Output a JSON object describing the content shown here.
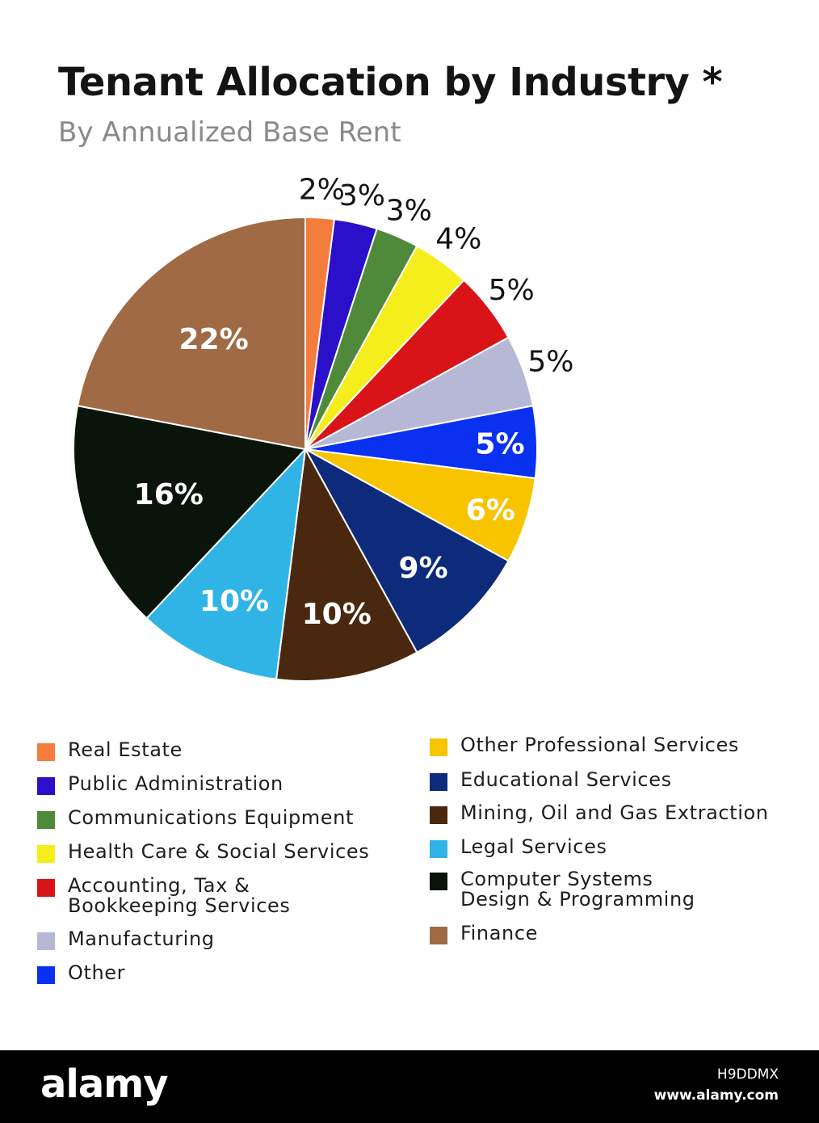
{
  "chart_data": {
    "type": "pie",
    "title": "Tenant Allocation by Industry *",
    "subtitle": "By Annualized Base Rent",
    "slices": [
      {
        "label": "Real Estate",
        "value": 2,
        "display": "2%",
        "color": "#F47C3C"
      },
      {
        "label": "Public Administration",
        "value": 3,
        "display": "3%",
        "color": "#2A10C8"
      },
      {
        "label": "Communications Equipment",
        "value": 3,
        "display": "3%",
        "color": "#4E8A3A"
      },
      {
        "label": "Health Care & Social Services",
        "value": 4,
        "display": "4%",
        "color": "#F5EE1C"
      },
      {
        "label": "Accounting, Tax &\nBookkeeping Services",
        "value": 5,
        "display": "5%",
        "color": "#D81418"
      },
      {
        "label": "Manufacturing",
        "value": 5,
        "display": "5%",
        "color": "#B7B8D6"
      },
      {
        "label": "Other",
        "value": 5,
        "display": "5%",
        "color": "#0A30F0"
      },
      {
        "label": "Other Professional Services",
        "value": 6,
        "display": "6%",
        "color": "#F8C400"
      },
      {
        "label": "Educational Services",
        "value": 9,
        "display": "9%",
        "color": "#0D2B7A"
      },
      {
        "label": "Mining, Oil and Gas Extraction",
        "value": 10,
        "display": "10%",
        "color": "#4A2810"
      },
      {
        "label": "Legal Services",
        "value": 10,
        "display": "10%",
        "color": "#30B4E6"
      },
      {
        "label": "Computer Systems\nDesign & Programming",
        "value": 16,
        "display": "16%",
        "color": "#0A140A"
      },
      {
        "label": "Finance",
        "value": 22,
        "display": "22%",
        "color": "#A06A44"
      }
    ],
    "legend_placement": "bottom"
  },
  "footer": {
    "logo": "alamy",
    "image_id": "H9DDMX",
    "url": "www.alamy.com"
  }
}
